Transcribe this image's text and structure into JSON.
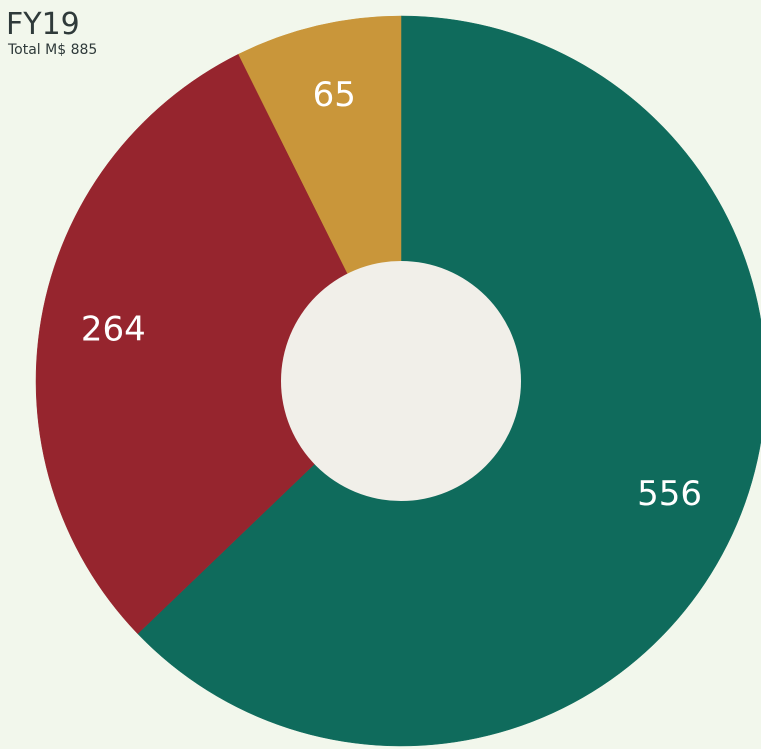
{
  "chart_data": {
    "type": "donut",
    "title": "FY19",
    "subtitle": "Total M$ 885",
    "categories": [
      null,
      null,
      null
    ],
    "values": [
      556,
      264,
      65
    ],
    "colors": [
      "#0f6b5c",
      "#96252e",
      "#c9963a"
    ]
  }
}
